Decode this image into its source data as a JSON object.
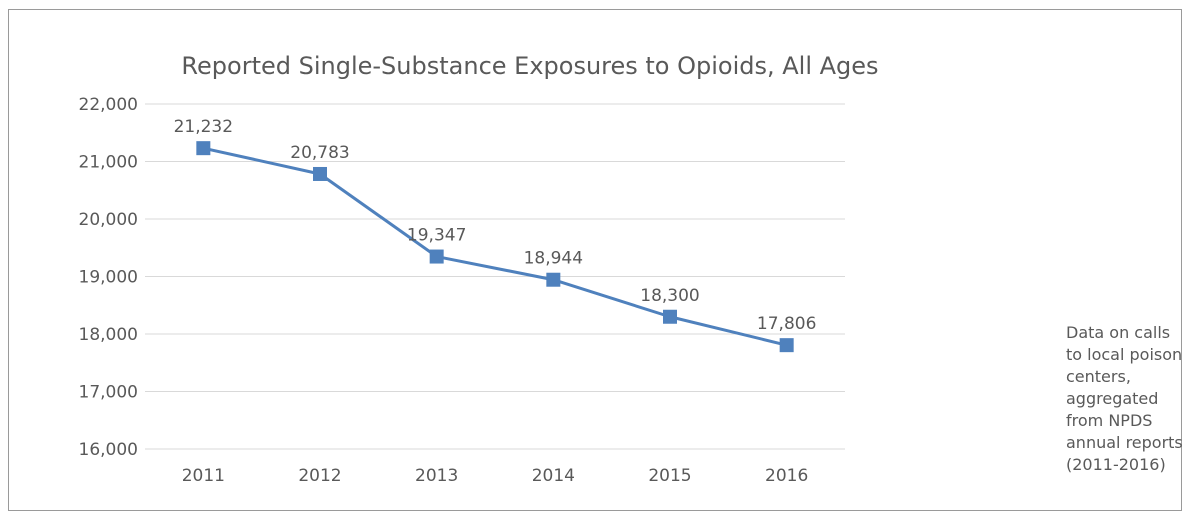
{
  "chart_data": {
    "type": "line",
    "title": "Reported Single-Substance Exposures to Opioids, All Ages",
    "xlabel": "",
    "ylabel": "",
    "categories": [
      "2011",
      "2012",
      "2013",
      "2014",
      "2015",
      "2016"
    ],
    "series": [
      {
        "values": [
          21232,
          20783,
          19347,
          18944,
          18300,
          17806
        ],
        "color": "#4f81bd"
      }
    ],
    "data_labels": [
      "21,232",
      "20,783",
      "19,347",
      "18,944",
      "18,300",
      "17,806"
    ],
    "ylim": [
      16000,
      22000
    ],
    "yticks": [
      16000,
      17000,
      18000,
      19000,
      20000,
      21000,
      22000
    ],
    "ytick_labels": [
      "16,000",
      "17,000",
      "18,000",
      "19,000",
      "20,000",
      "21,000",
      "22,000"
    ],
    "grid": true,
    "marker": "square",
    "annotation": "Data on calls to local poison centers, aggregated from NPDS annual reports (2011-2016)"
  }
}
